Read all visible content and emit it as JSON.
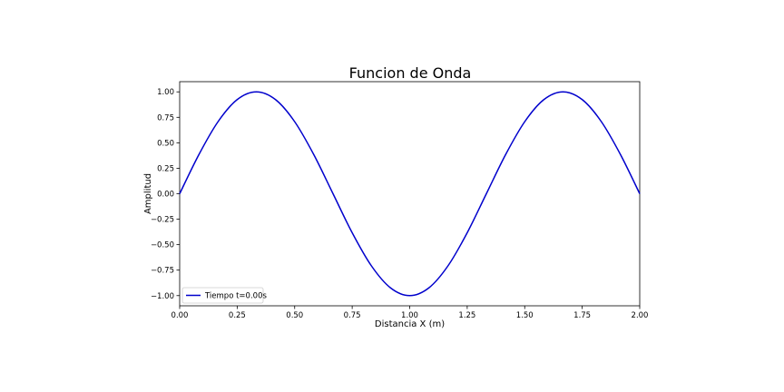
{
  "chart_data": {
    "type": "line",
    "title": "Funcion de Onda",
    "xlabel": "Distancia X (m)",
    "ylabel": "Amplitud",
    "xlim": [
      0,
      2
    ],
    "ylim": [
      -1.1,
      1.1
    ],
    "grid": false,
    "legend_position": "lower-left",
    "x_ticks": [
      "0.00",
      "0.25",
      "0.50",
      "0.75",
      "1.00",
      "1.25",
      "1.50",
      "1.75",
      "2.00"
    ],
    "y_ticks": [
      "1.00",
      "0.75",
      "0.50",
      "0.25",
      "0.00",
      "−0.25",
      "−0.50",
      "−0.75",
      "−1.00"
    ],
    "series": [
      {
        "name": "Tiempo t=0.00s",
        "color": "#0000cc",
        "x": [
          0,
          0.0833,
          0.1667,
          0.25,
          0.3333,
          0.4167,
          0.5,
          0.5833,
          0.6667,
          0.75,
          0.8333,
          0.9167,
          1.0,
          1.0833,
          1.1667,
          1.25,
          1.3333,
          1.4167,
          1.5,
          1.5833,
          1.6667,
          1.75,
          1.8333,
          1.9167,
          2.0
        ],
        "y": [
          0,
          0.383,
          0.707,
          0.924,
          1.0,
          0.924,
          0.707,
          0.383,
          0,
          -0.383,
          -0.707,
          -0.924,
          -1.0,
          -0.924,
          -0.707,
          -0.383,
          0,
          0.383,
          0.707,
          0.924,
          1.0,
          0.924,
          0.707,
          0.383,
          0
        ]
      }
    ]
  }
}
